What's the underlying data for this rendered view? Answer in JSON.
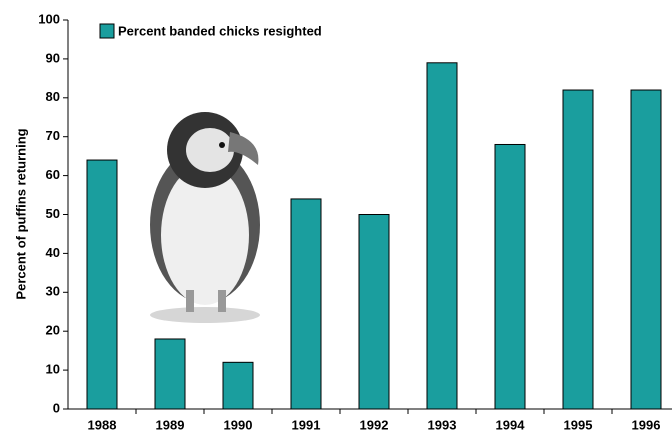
{
  "chart_data": {
    "type": "bar",
    "y_axis_label": "Percent of puffins returning",
    "categories": [
      "1988",
      "1989",
      "1990",
      "1991",
      "1992",
      "1993",
      "1994",
      "1995",
      "1996"
    ],
    "series": [
      {
        "name": "Percent banded chicks resighted",
        "color": "#1a9e9e",
        "values": [
          64,
          18,
          12,
          54,
          50,
          89,
          68,
          82,
          82
        ]
      }
    ],
    "ylim": [
      0,
      100
    ],
    "yticks": [
      0,
      10,
      20,
      30,
      40,
      50,
      60,
      70,
      80,
      90,
      100
    ],
    "legend": "top-left"
  }
}
